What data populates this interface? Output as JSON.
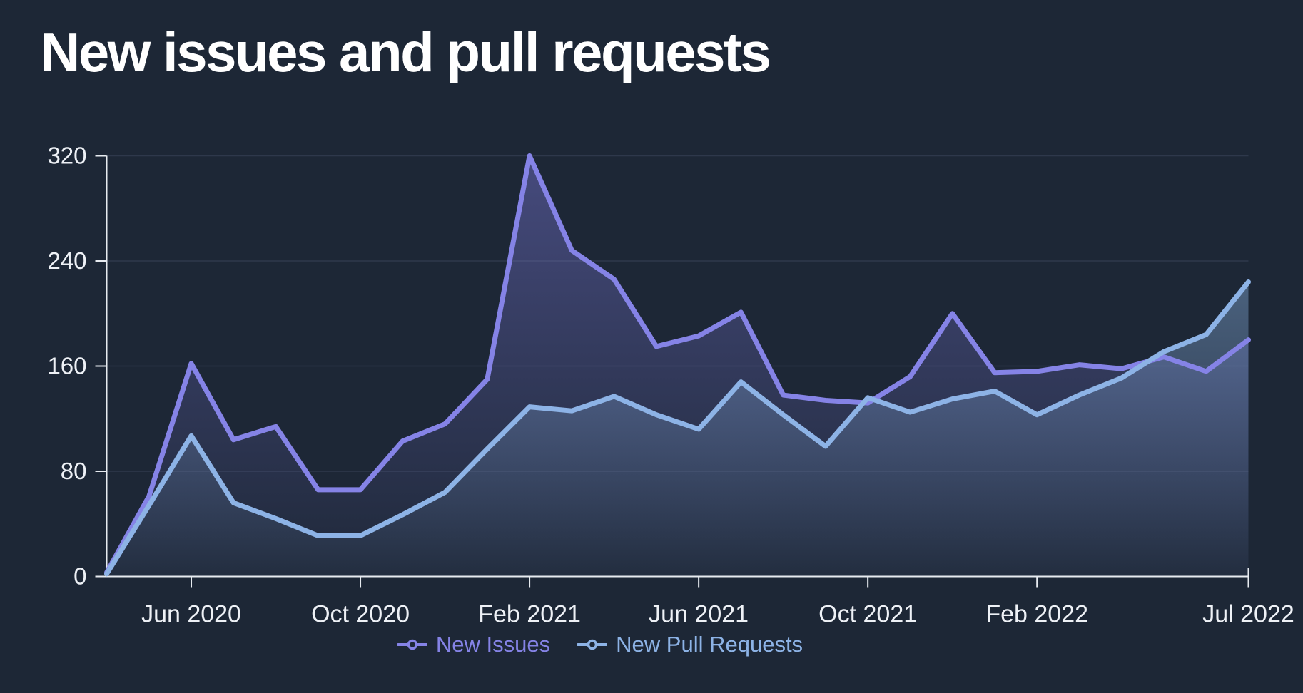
{
  "page": {
    "background": "#1d2736"
  },
  "header": {
    "title": "New issues and pull requests"
  },
  "axes": {
    "axis_color": "#e7ebf0",
    "label_color": "#eef1f6",
    "grid_color": "rgba(134,152,184,0.16)"
  },
  "chart_data": {
    "type": "area",
    "title": "New issues and pull requests",
    "xlabel": "",
    "ylabel": "",
    "ylim": [
      0,
      320
    ],
    "grid": "horizontal",
    "legend_position": "bottom",
    "x": [
      "Apr 2020",
      "May 2020",
      "Jun 2020",
      "Jul 2020",
      "Aug 2020",
      "Sep 2020",
      "Oct 2020",
      "Nov 2020",
      "Dec 2020",
      "Jan 2021",
      "Feb 2021",
      "Mar 2021",
      "Apr 2021",
      "May 2021",
      "Jun 2021",
      "Jul 2021",
      "Aug 2021",
      "Sep 2021",
      "Oct 2021",
      "Nov 2021",
      "Dec 2021",
      "Jan 2022",
      "Feb 2022",
      "Mar 2022",
      "Apr 2022",
      "May 2022",
      "Jun 2022",
      "Jul 2022"
    ],
    "x_tick_indices": [
      2,
      6,
      10,
      14,
      18,
      22,
      27
    ],
    "x_tick_labels": [
      "Jun 2020",
      "Oct 2020",
      "Feb 2021",
      "Jun 2021",
      "Oct 2021",
      "Feb 2022",
      "Jul 2022"
    ],
    "y_ticks": [
      0,
      80,
      160,
      240,
      320
    ],
    "series": [
      {
        "name": "New Issues",
        "color": "#8583e6",
        "fill_from": "rgba(127,124,224,0.42)",
        "fill_to": "rgba(127,124,224,0.02)",
        "values": [
          3,
          61,
          162,
          104,
          114,
          66,
          66,
          103,
          116,
          150,
          320,
          248,
          226,
          175,
          183,
          201,
          138,
          134,
          132,
          152,
          200,
          155,
          156,
          161,
          158,
          167,
          156,
          180
        ]
      },
      {
        "name": "New Pull Requests",
        "color": "#8db3e6",
        "fill_from": "rgba(143,185,234,0.40)",
        "fill_to": "rgba(143,185,234,0.03)",
        "values": [
          2,
          54,
          107,
          56,
          44,
          31,
          31,
          47,
          64,
          97,
          129,
          126,
          137,
          123,
          112,
          148,
          123,
          99,
          136,
          125,
          135,
          141,
          123,
          138,
          151,
          171,
          184,
          224
        ]
      }
    ]
  }
}
